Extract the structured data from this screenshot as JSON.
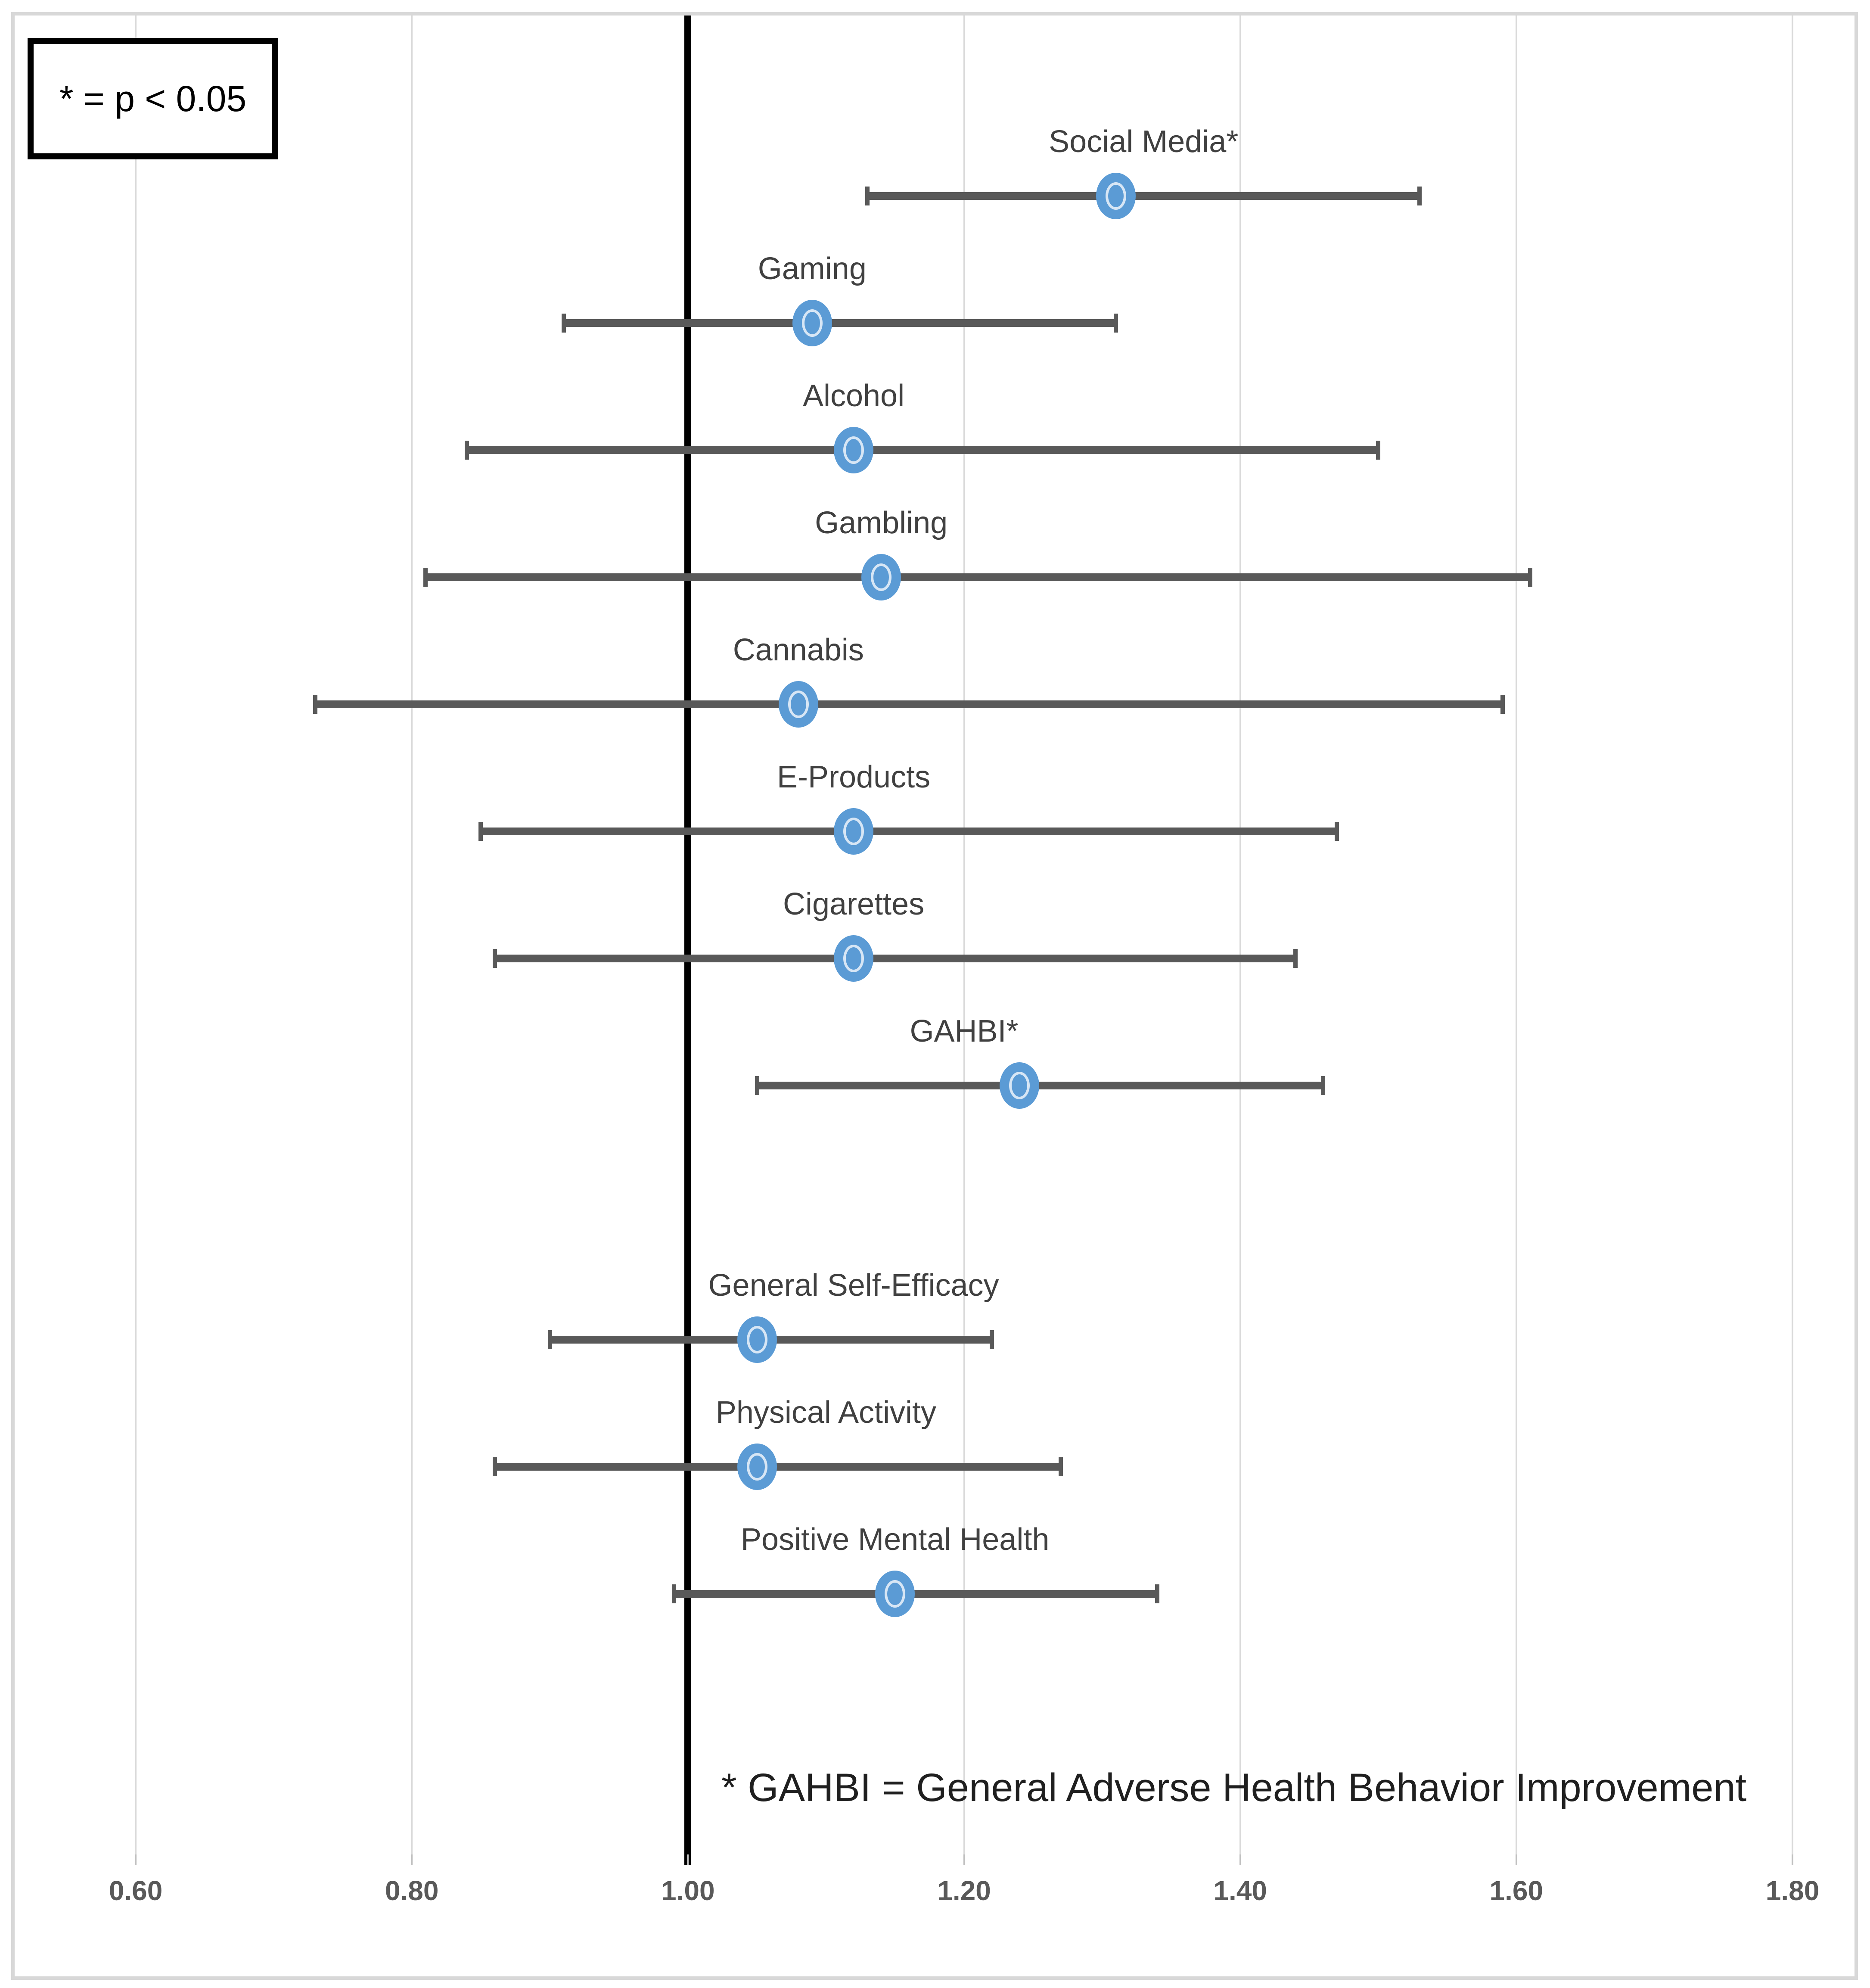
{
  "legend": {
    "text": "* = p < 0.05"
  },
  "footnote": "* GAHBI = General Adverse Health Behavior Improvement",
  "colors": {
    "marker": "#5B9BD5",
    "marker_ring": "#D7E6F5",
    "error_bar": "#595959",
    "gridline": "#D9D9D9",
    "tick_mark": "#BFBFBF",
    "reference_line": "#000000",
    "tick_text": "#595959",
    "label_text": "#404040",
    "frame": "#D8D8D8"
  },
  "chart_data": {
    "type": "scatter",
    "subtype": "forest-plot",
    "title": "",
    "xlabel": "",
    "ylabel": "",
    "grid": true,
    "legend_position": "top-left",
    "x_axis": {
      "min": 0.6,
      "max": 1.8,
      "tick_values": [
        0.6,
        0.8,
        1.0,
        1.2,
        1.4,
        1.6,
        1.8
      ],
      "tick_labels": [
        "0.60",
        "0.80",
        "1.00",
        "1.20",
        "1.40",
        "1.60",
        "1.80"
      ]
    },
    "reference_line_x": 1.0,
    "rows": [
      {
        "label": "Social Media*",
        "value": 1.31,
        "ci_low": 1.13,
        "ci_high": 1.53,
        "significant": true,
        "slot": 0,
        "label_x": 1.33
      },
      {
        "label": "Gaming",
        "value": 1.09,
        "ci_low": 0.91,
        "ci_high": 1.31,
        "significant": false,
        "slot": 1,
        "label_x": 1.09
      },
      {
        "label": "Alcohol",
        "value": 1.12,
        "ci_low": 0.84,
        "ci_high": 1.5,
        "significant": false,
        "slot": 2,
        "label_x": 1.12
      },
      {
        "label": "Gambling",
        "value": 1.14,
        "ci_low": 0.81,
        "ci_high": 1.61,
        "significant": false,
        "slot": 3,
        "label_x": 1.14
      },
      {
        "label": "Cannabis",
        "value": 1.08,
        "ci_low": 0.73,
        "ci_high": 1.59,
        "significant": false,
        "slot": 4,
        "label_x": 1.08
      },
      {
        "label": "E-Products",
        "value": 1.12,
        "ci_low": 0.85,
        "ci_high": 1.47,
        "significant": false,
        "slot": 5,
        "label_x": 1.12
      },
      {
        "label": "Cigarettes",
        "value": 1.12,
        "ci_low": 0.86,
        "ci_high": 1.44,
        "significant": false,
        "slot": 6,
        "label_x": 1.12
      },
      {
        "label": "GAHBI*",
        "value": 1.24,
        "ci_low": 1.05,
        "ci_high": 1.46,
        "significant": true,
        "slot": 7,
        "label_x": 1.2
      },
      {
        "label": "General Self-Efficacy",
        "value": 1.05,
        "ci_low": 0.9,
        "ci_high": 1.22,
        "significant": false,
        "slot": 9,
        "label_x": 1.12
      },
      {
        "label": "Physical Activity",
        "value": 1.05,
        "ci_low": 0.86,
        "ci_high": 1.27,
        "significant": false,
        "slot": 10,
        "label_x": 1.1
      },
      {
        "label": "Positive Mental Health",
        "value": 1.15,
        "ci_low": 0.99,
        "ci_high": 1.34,
        "significant": false,
        "slot": 11,
        "label_x": 1.15
      }
    ]
  }
}
